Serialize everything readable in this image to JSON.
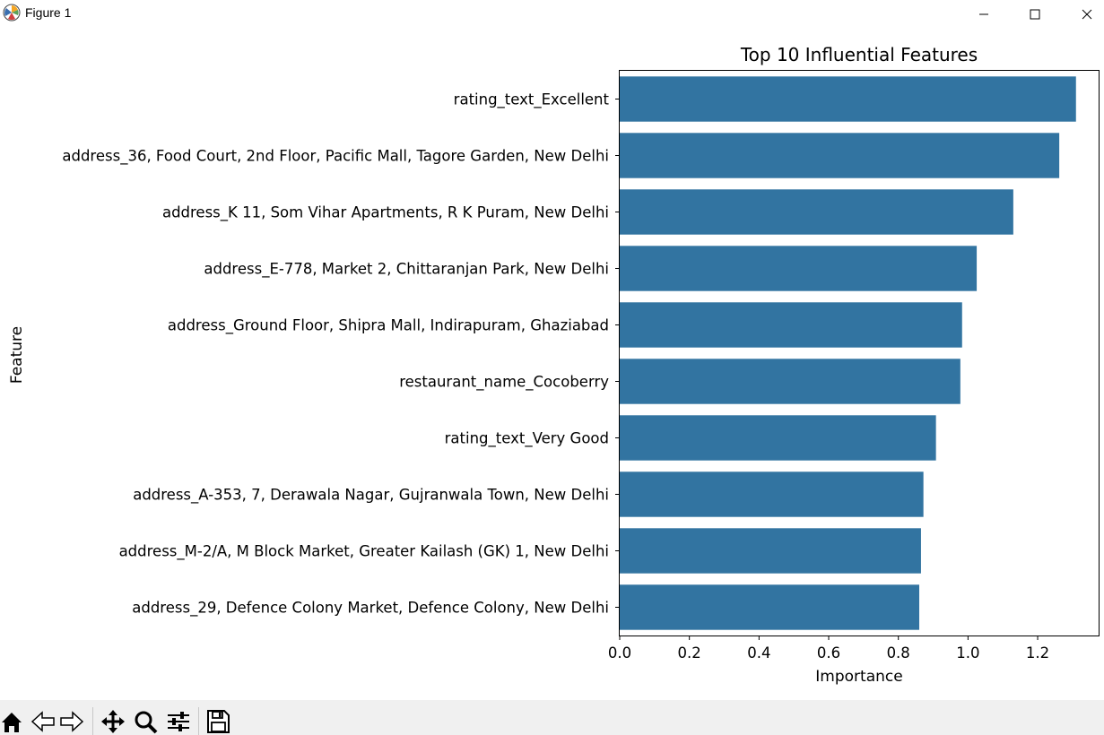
{
  "window": {
    "title": "Figure 1",
    "icons": [
      "app-logo-icon",
      "minimize-icon",
      "maximize-icon",
      "close-icon"
    ]
  },
  "toolbar": {
    "buttons": [
      {
        "name": "home",
        "icon": "home-icon"
      },
      {
        "name": "back",
        "icon": "back-arrow-icon"
      },
      {
        "name": "forward",
        "icon": "forward-arrow-icon"
      },
      {
        "name": "pan",
        "icon": "move-icon"
      },
      {
        "name": "zoom",
        "icon": "magnifier-icon"
      },
      {
        "name": "configure-subplots",
        "icon": "sliders-icon"
      },
      {
        "name": "save",
        "icon": "floppy-disk-icon"
      }
    ]
  },
  "chart_data": {
    "type": "bar",
    "orientation": "horizontal",
    "title": "Top 10 Influential Features",
    "xlabel": "Importance",
    "ylabel": "Feature",
    "categories": [
      "rating_text_Excellent",
      "address_36, Food Court, 2nd Floor, Pacific Mall, Tagore Garden, New Delhi",
      "address_K 11, Som Vihar Apartments, R K Puram, New Delhi",
      "address_E-778, Market 2, Chittaranjan Park, New Delhi",
      "address_Ground Floor, Shipra Mall, Indirapuram, Ghaziabad",
      "restaurant_name_Cocoberry",
      "rating_text_Very Good",
      "address_A-353, 7, Derawala Nagar, Gujranwala Town, New Delhi",
      "address_M-2/A, M Block Market, Greater Kailash (GK) 1, New Delhi",
      "address_29, Defence Colony Market, Defence Colony, New Delhi"
    ],
    "values": [
      1.31,
      1.262,
      1.13,
      1.025,
      0.983,
      0.978,
      0.908,
      0.872,
      0.865,
      0.86
    ],
    "xlim": [
      0,
      1.375
    ],
    "xticks": [
      0.0,
      0.2,
      0.4,
      0.6,
      0.8,
      1.0,
      1.2
    ],
    "xtick_labels": [
      "0.0",
      "0.2",
      "0.4",
      "0.6",
      "0.8",
      "1.0",
      "1.2"
    ],
    "bar_color": "#3274a1",
    "grid": false
  }
}
